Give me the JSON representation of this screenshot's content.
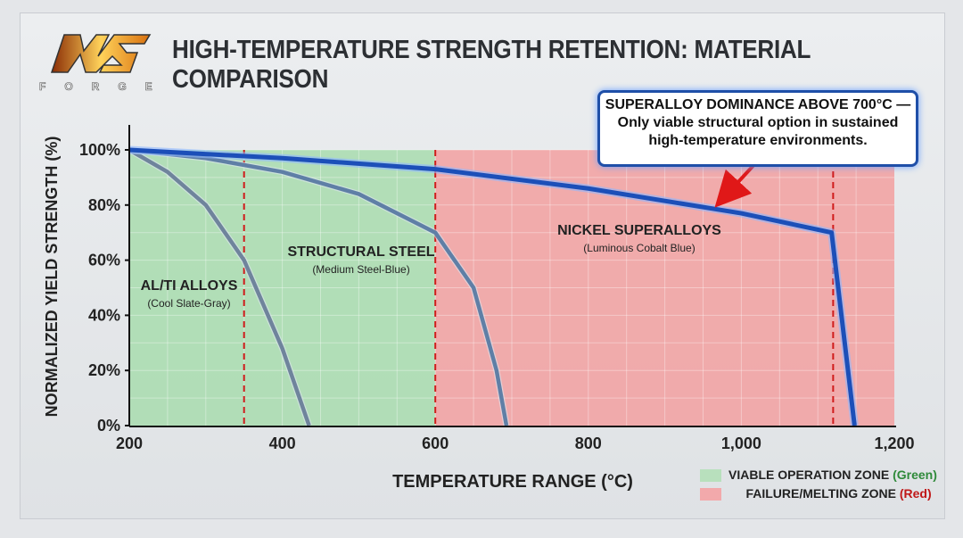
{
  "brand": {
    "logo_text": "MCS",
    "sub": "FORGE"
  },
  "chart_data": {
    "type": "line",
    "title": "HIGH-TEMPERATURE STRENGTH RETENTION: MATERIAL COMPARISON",
    "xlabel": "TEMPERATURE RANGE (°C)",
    "ylabel": "NORMALIZED YIELD STRENGTH (%)",
    "xlim": [
      200,
      1200
    ],
    "ylim": [
      0,
      100
    ],
    "xticks": [
      "200",
      "400",
      "600",
      "800",
      "1,000",
      "1,200"
    ],
    "yticks": [
      "0%",
      "20%",
      "40%",
      "60%",
      "80%",
      "100%"
    ],
    "grid": true,
    "zones": [
      {
        "name": "VIABLE OPERATION ZONE",
        "tag": "(Green)",
        "from": 200,
        "to": 600,
        "color": "#a8dcae"
      },
      {
        "name": "FAILURE/MELTING ZONE",
        "tag": "(Red)",
        "from": 600,
        "to": 1200,
        "color": "#f2a0a0"
      }
    ],
    "dashed_lines": [
      350,
      600,
      1120
    ],
    "series": [
      {
        "name": "AL/TI ALLOYS",
        "note": "(Cool Slate-Gray)",
        "color": "#6f849c",
        "x": [
          200,
          250,
          300,
          350,
          400,
          435
        ],
        "y": [
          100,
          92,
          80,
          60,
          28,
          0
        ]
      },
      {
        "name": "STRUCTURAL STEEL",
        "note": "(Medium Steel-Blue)",
        "color": "#5f7fa6",
        "x": [
          200,
          300,
          400,
          500,
          600,
          650,
          680,
          693
        ],
        "y": [
          100,
          97,
          92,
          84,
          70,
          50,
          20,
          0
        ]
      },
      {
        "name": "NICKEL SUPERALLOYS",
        "note": "(Luminous Cobalt Blue)",
        "color": "#1c4fb8",
        "x": [
          200,
          400,
          600,
          800,
          1000,
          1118,
          1148
        ],
        "y": [
          100,
          97,
          93,
          86,
          77,
          70,
          0
        ]
      }
    ],
    "annotation": {
      "title": "SUPERALLOY DOMINANCE ABOVE 700°C —",
      "lines": [
        "Only viable structural option in sustained",
        "high-temperature environments."
      ]
    },
    "legend_placement": "bottom-right"
  }
}
